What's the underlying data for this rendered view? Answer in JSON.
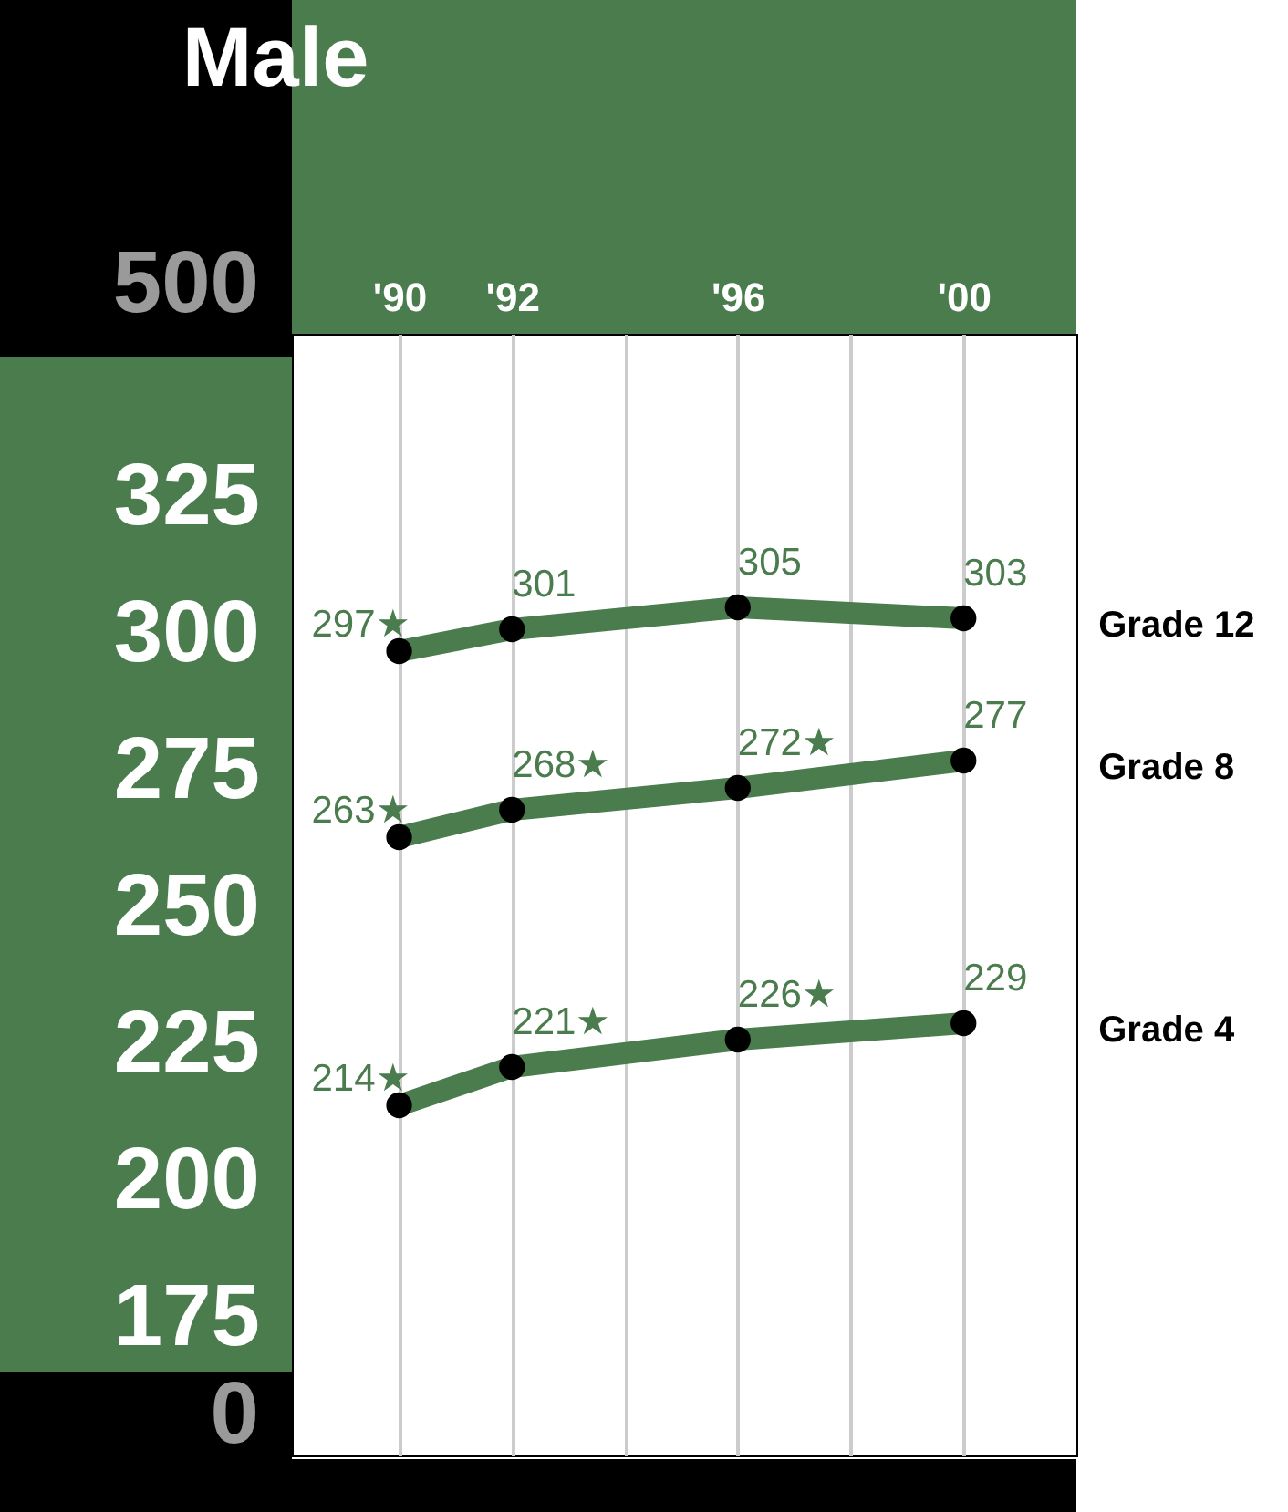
{
  "chart_data": {
    "type": "line",
    "title": "Male",
    "x": [
      1990,
      1992,
      1996,
      2000
    ],
    "xlim": [
      1988.1,
      2002
    ],
    "xticks": [
      {
        "value": 1990,
        "label": "'90"
      },
      {
        "value": 1992,
        "label": "'92"
      },
      {
        "value": 1994,
        "label": null
      },
      {
        "value": 1996,
        "label": "'96"
      },
      {
        "value": 1998,
        "label": null
      },
      {
        "value": 2000,
        "label": "'00"
      }
    ],
    "ylim": [
      150,
      355
    ],
    "yticks": [
      175,
      200,
      225,
      250,
      275,
      300,
      325
    ],
    "annotations": [
      "500",
      "0"
    ],
    "grid": "x",
    "marker": "circle",
    "series": [
      {
        "name": "Grade 12",
        "color": "#4a7c4d",
        "values": [
          297,
          301,
          305,
          303
        ],
        "value_labels": [
          "297★",
          "301",
          "305",
          "303"
        ]
      },
      {
        "name": "Grade 8",
        "color": "#4a7c4d",
        "values": [
          263,
          268,
          272,
          277
        ],
        "value_labels": [
          "263★",
          "268★",
          "272★",
          "277"
        ]
      },
      {
        "name": "Grade 4",
        "color": "#4a7c4d",
        "values": [
          214,
          221,
          226,
          229
        ],
        "value_labels": [
          "214★",
          "221★",
          "226★",
          "229"
        ]
      }
    ]
  }
}
